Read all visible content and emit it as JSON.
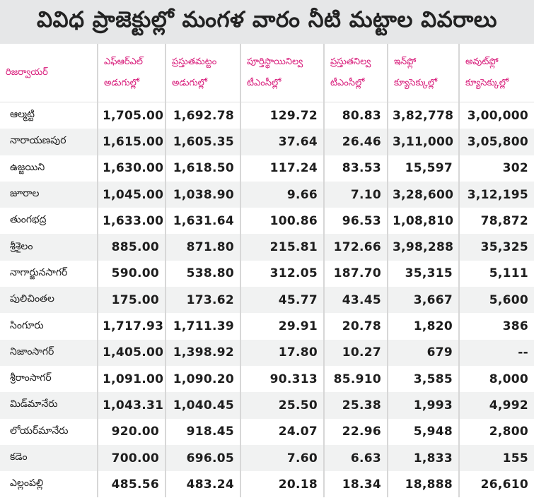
{
  "title": "వివిధ ప్రాజెక్టుల్లో మంగళ వారం నీటి మట్టాల వివరాలు",
  "headers": [
    {
      "line1": "రిజర్వాయర్",
      "line2": ""
    },
    {
      "line1": "ఎఫ్ఆర్ఎల్",
      "line2": "అడుగుల్లో"
    },
    {
      "line1": "ప్రస్తుతమట్టం",
      "line2": "అడుగుల్లో"
    },
    {
      "line1": "పూర్తిస్థాయినిల్వ",
      "line2": "టీఎంసీల్లో"
    },
    {
      "line1": "ప్రస్తుతనిల్వ",
      "line2": "టీఎంసీల్లో"
    },
    {
      "line1": "ఇన్‌ఫ్లో",
      "line2": "క్యూసెక్కుల్లో"
    },
    {
      "line1": "అవుట్‌ఫ్లో",
      "line2": "క్యూసెక్కుల్లో"
    }
  ],
  "rows": [
    [
      "ఆల్మట్టి",
      "1,705.00",
      "1,692.78",
      "129.72",
      "80.83",
      "3,82,778",
      "3,00,000"
    ],
    [
      "నారాయణపుర",
      "1,615.00",
      "1,605.35",
      "37.64",
      "26.46",
      "3,11,000",
      "3,05,800"
    ],
    [
      "ఉజ్జయిని",
      "1,630.00",
      "1,618.50",
      "117.24",
      "83.53",
      "15,597",
      "302"
    ],
    [
      "జూరాల",
      "1,045.00",
      "1,038.90",
      "9.66",
      "7.10",
      "3,28,600",
      "3,12,195"
    ],
    [
      "తుంగభద్ర",
      "1,633.00",
      "1,631.64",
      "100.86",
      "96.53",
      "1,08,810",
      "78,872"
    ],
    [
      "శ్రీశైలం",
      "885.00",
      "871.80",
      "215.81",
      "172.66",
      "3,98,288",
      "35,325"
    ],
    [
      "నాగార్జునసాగర్",
      "590.00",
      "538.80",
      "312.05",
      "187.70",
      "35,315",
      "5,111"
    ],
    [
      "పులిచింతల",
      "175.00",
      "173.62",
      "45.77",
      "43.45",
      "3,667",
      "5,600"
    ],
    [
      "సింగూరు",
      "1,717.93",
      "1,711.39",
      "29.91",
      "20.78",
      "1,820",
      "386"
    ],
    [
      "నిజాంసాగర్",
      "1,405.00",
      "1,398.92",
      "17.80",
      "10.27",
      "679",
      "--"
    ],
    [
      "శ్రీరాంసాగర్",
      "1,091.00",
      "1,090.20",
      "90.313",
      "85.910",
      "3,585",
      "8,000"
    ],
    [
      "మిడ్‌మానేరు",
      "1,043.31",
      "1,040.45",
      "25.50",
      "25.38",
      "1,993",
      "4,992"
    ],
    [
      "లోయర్‌మానేరు",
      "920.00",
      "918.45",
      "24.07",
      "22.96",
      "5,948",
      "2,800"
    ],
    [
      "కడెం",
      "700.00",
      "696.05",
      "7.60",
      "6.63",
      "1,833",
      "155"
    ],
    [
      "ఎల్లంపల్లి",
      "485.56",
      "483.24",
      "20.18",
      "18.34",
      "18,888",
      "26,610"
    ]
  ],
  "colors": {
    "header_text": "#d81b7a",
    "title_bg": "#e6e7e8",
    "stripe": "#f1f2f2"
  }
}
